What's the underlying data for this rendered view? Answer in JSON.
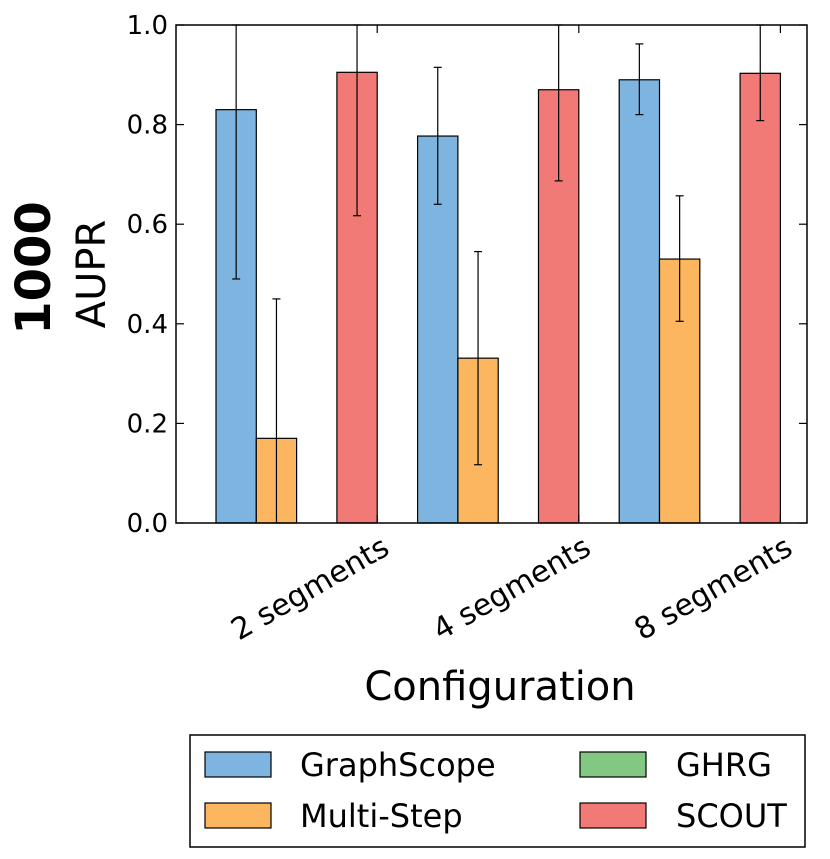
{
  "chart_data": {
    "type": "bar",
    "title": "",
    "row_label": "1000",
    "ylabel": "AUPR",
    "xlabel": "Configuration",
    "ylim": [
      0.0,
      1.0
    ],
    "yticks": [
      "0.0",
      "0.2",
      "0.4",
      "0.6",
      "0.8",
      "1.0"
    ],
    "categories": [
      "2 segments",
      "4 segments",
      "8 segments"
    ],
    "series": [
      {
        "name": "GraphScope",
        "color": "#7EB5E0",
        "values": [
          0.83,
          0.777,
          0.89
        ],
        "err_low": [
          0.49,
          0.64,
          0.82
        ],
        "err_high": [
          1.0,
          0.915,
          0.962
        ]
      },
      {
        "name": "Multi-Step",
        "color": "#FCB660",
        "values": [
          0.17,
          0.331,
          0.53
        ],
        "err_low": [
          0.0,
          0.117,
          0.405
        ],
        "err_high": [
          0.45,
          0.545,
          0.657
        ]
      },
      {
        "name": "GHRG",
        "color": "#82C882",
        "values": [
          0,
          0,
          0
        ],
        "err_low": [
          0,
          0,
          0
        ],
        "err_high": [
          0,
          0,
          0
        ]
      },
      {
        "name": "SCOUT",
        "color": "#F27A76",
        "values": [
          0.905,
          0.87,
          0.903
        ],
        "err_low": [
          0.617,
          0.687,
          0.808
        ],
        "err_high": [
          1.0,
          1.0,
          1.0
        ]
      }
    ],
    "legend_position": "bottom-center",
    "grid": false
  }
}
